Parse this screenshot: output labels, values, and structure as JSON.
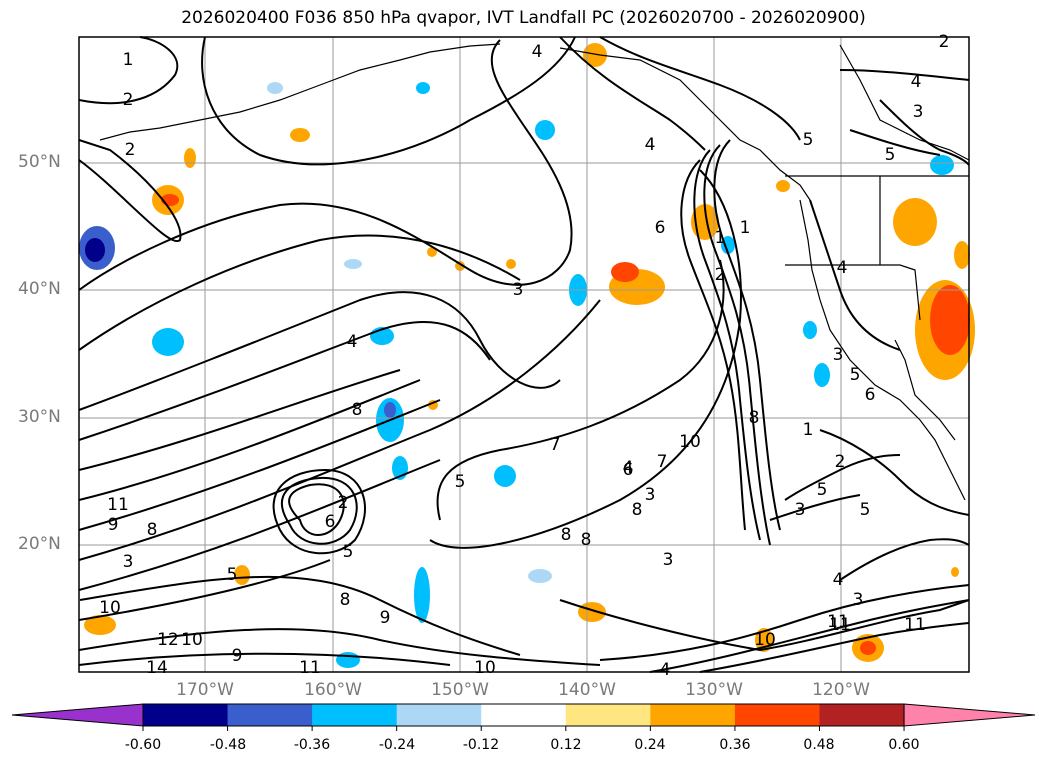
{
  "title": "2026020400 F036 850 hPa qvapor, IVT Landfall PC (2026020700 - 2026020900)",
  "map": {
    "latitude_labels": [
      "50°N",
      "40°N",
      "30°N",
      "20°N"
    ],
    "longitude_labels": [
      "170°W",
      "160°W",
      "150°W",
      "140°W",
      "130°W",
      "120°W"
    ],
    "contour_labels": [
      "1",
      "2",
      "2",
      "4",
      "5",
      "3",
      "4",
      "2",
      "4",
      "5",
      "6",
      "1",
      "2",
      "3",
      "4",
      "3",
      "4",
      "5",
      "6",
      "8",
      "7",
      "10",
      "11",
      "9",
      "8",
      "3",
      "2",
      "6",
      "5",
      "8",
      "9",
      "10",
      "12",
      "14",
      "10",
      "9",
      "11",
      "5",
      "6",
      "5",
      "3",
      "8",
      "8",
      "4",
      "7",
      "8",
      "3",
      "1",
      "3",
      "8",
      "5",
      "2",
      "1",
      "5",
      "3",
      "4",
      "11",
      "11",
      "11",
      "10",
      "10",
      "4"
    ]
  },
  "colorbar": {
    "tick_labels": [
      "-0.60",
      "-0.48",
      "-0.36",
      "-0.24",
      "-0.12",
      "0.12",
      "0.24",
      "0.36",
      "0.48",
      "0.60"
    ],
    "colors": [
      "#9932cc",
      "#00008b",
      "#3a5fcd",
      "#00bfff",
      "#add8f5",
      "#ffffff",
      "#ffe680",
      "#ffa500",
      "#ff4500",
      "#b22222",
      "#ff82ab"
    ]
  }
}
